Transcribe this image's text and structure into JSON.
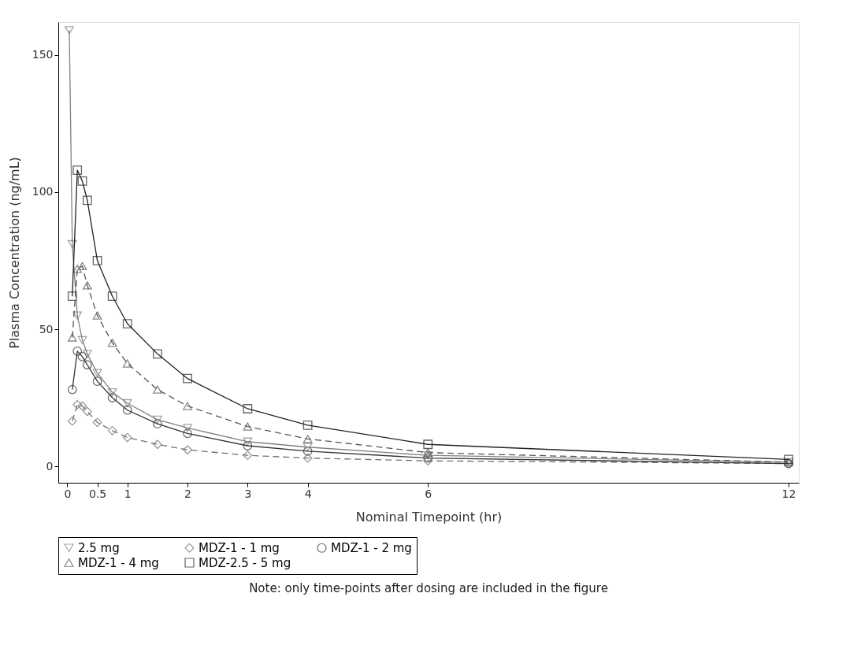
{
  "chart_data": {
    "type": "line",
    "xlabel": "Nominal Timepoint (hr)",
    "ylabel": "Plasma Concentration (ng/mL)",
    "xlim": [
      -0.15,
      12.17
    ],
    "xticks": [
      0,
      0.5,
      1,
      2,
      3,
      4,
      6,
      12
    ],
    "ylim": [
      -6,
      162
    ],
    "yticks": [
      0,
      50,
      100,
      150
    ],
    "grid": false,
    "legend": "bottom",
    "annotations": [
      "Note: only time-points after dosing are included in the figure"
    ],
    "series": [
      {
        "name": "2.5 mg",
        "color": "#808080",
        "marker": "triangle-down",
        "line_style": "solid",
        "x": [
          0.033,
          0.083,
          0.167,
          0.25,
          0.333,
          0.5,
          0.75,
          1,
          1.5,
          2,
          3,
          4,
          6,
          12
        ],
        "values": [
          159,
          81,
          55,
          46,
          41,
          34,
          27,
          23,
          17,
          14,
          9,
          7,
          4,
          1.5
        ]
      },
      {
        "name": "MDZ-1 - 1 mg",
        "color": "#707070",
        "marker": "diamond",
        "line_style": "dashed",
        "x": [
          0.083,
          0.167,
          0.25,
          0.333,
          0.5,
          0.75,
          1,
          1.5,
          2,
          3,
          4,
          6,
          12
        ],
        "values": [
          16.5,
          22.5,
          22,
          20,
          16,
          13,
          10.5,
          8,
          6,
          4,
          3,
          2,
          1
        ]
      },
      {
        "name": "MDZ-1 - 2 mg",
        "color": "#333333",
        "marker": "circle",
        "line_style": "solid",
        "x": [
          0.083,
          0.167,
          0.25,
          0.333,
          0.5,
          0.75,
          1,
          1.5,
          2,
          3,
          4,
          6,
          12
        ],
        "values": [
          28,
          42,
          40,
          37,
          31,
          25,
          20.5,
          15.5,
          12,
          7.5,
          5.5,
          3,
          1
        ]
      },
      {
        "name": "MDZ-1 - 4 mg",
        "color": "#555555",
        "marker": "triangle-up",
        "line_style": "dashed",
        "x": [
          0.083,
          0.167,
          0.25,
          0.333,
          0.5,
          0.75,
          1,
          1.5,
          2,
          3,
          4,
          6,
          12
        ],
        "values": [
          47,
          72,
          73,
          66,
          55,
          45,
          37.5,
          28,
          22,
          14.5,
          10,
          5,
          1.5
        ]
      },
      {
        "name": "MDZ-2.5 - 5 mg",
        "color": "#222222",
        "marker": "square",
        "line_style": "solid",
        "x": [
          0.083,
          0.167,
          0.25,
          0.333,
          0.5,
          0.75,
          1,
          1.5,
          2,
          3,
          4,
          6,
          12
        ],
        "values": [
          62,
          108,
          104,
          97,
          75,
          62,
          52,
          41,
          32,
          21,
          15,
          8,
          2.5
        ]
      }
    ]
  }
}
